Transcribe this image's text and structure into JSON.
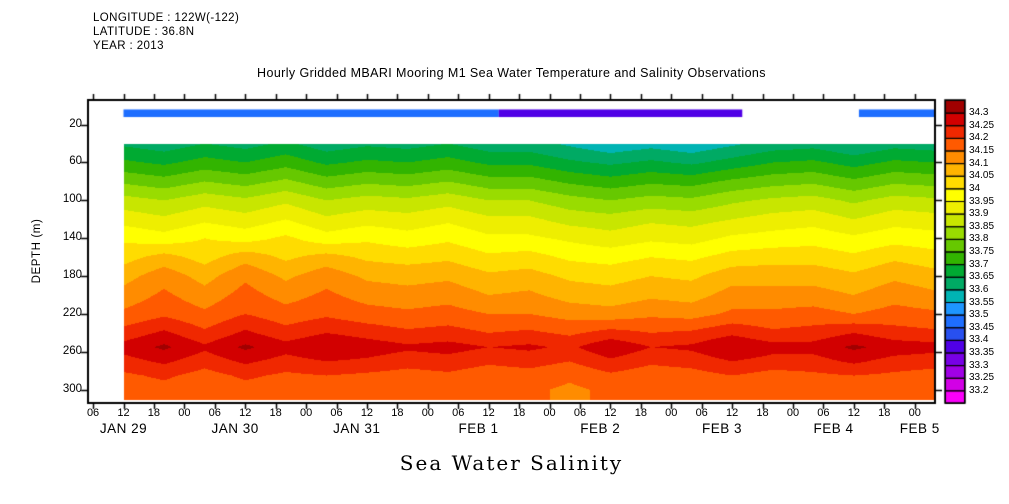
{
  "header": {
    "longitude": "LONGITUDE : 122W(-122)",
    "latitude": "LATITUDE : 36.8N",
    "year": "YEAR : 2013"
  },
  "title": "Hourly Gridded MBARI Mooring M1 Sea Water Temperature and Salinity Observations",
  "footer_label": "Sea Water Salinity",
  "y_axis": {
    "label": "DEPTH (m)",
    "ticks": [
      20,
      60,
      100,
      140,
      180,
      220,
      260,
      300
    ],
    "range": [
      -6,
      314
    ]
  },
  "x_axis": {
    "range_hours": [
      5,
      172
    ],
    "ticks": [
      [
        6,
        "06"
      ],
      [
        12,
        "12"
      ],
      [
        18,
        "18"
      ],
      [
        24,
        "00"
      ],
      [
        30,
        "06"
      ],
      [
        36,
        "12"
      ],
      [
        42,
        "18"
      ],
      [
        48,
        "00"
      ],
      [
        54,
        "06"
      ],
      [
        60,
        "12"
      ],
      [
        66,
        "18"
      ],
      [
        72,
        "00"
      ],
      [
        78,
        "06"
      ],
      [
        84,
        "12"
      ],
      [
        90,
        "18"
      ],
      [
        96,
        "00"
      ],
      [
        102,
        "06"
      ],
      [
        108,
        "12"
      ],
      [
        114,
        "18"
      ],
      [
        120,
        "00"
      ],
      [
        126,
        "06"
      ],
      [
        132,
        "12"
      ],
      [
        138,
        "18"
      ],
      [
        144,
        "00"
      ],
      [
        150,
        "06"
      ],
      [
        156,
        "12"
      ],
      [
        162,
        "18"
      ],
      [
        168,
        "00"
      ]
    ],
    "date_labels": [
      [
        12,
        "JAN 29"
      ],
      [
        34,
        "JAN 30"
      ],
      [
        58,
        "JAN 31"
      ],
      [
        82,
        "FEB 1"
      ],
      [
        106,
        "FEB 2"
      ],
      [
        130,
        "FEB 3"
      ],
      [
        152,
        "FEB 4"
      ],
      [
        169,
        "FEB 5"
      ]
    ]
  },
  "colorbar": {
    "labels_top_to_bottom": [
      "34.3",
      "34.25",
      "34.2",
      "34.15",
      "34.1",
      "34.05",
      "34",
      "33.95",
      "33.9",
      "33.85",
      "33.8",
      "33.75",
      "33.7",
      "33.65",
      "33.6",
      "33.55",
      "33.5",
      "33.45",
      "33.4",
      "33.35",
      "33.3",
      "33.25",
      "33.2"
    ],
    "levels": [
      33.2,
      33.25,
      33.3,
      33.35,
      33.4,
      33.45,
      33.5,
      33.55,
      33.6,
      33.65,
      33.7,
      33.75,
      33.8,
      33.85,
      33.9,
      33.95,
      34.0,
      34.05,
      34.1,
      34.15,
      34.2,
      34.25,
      34.3
    ],
    "palette_low_to_high": [
      "#fa00fa",
      "#d200e6",
      "#a000e6",
      "#7800e6",
      "#5000e6",
      "#2850f0",
      "#1e6eff",
      "#1e96ff",
      "#00b4b4",
      "#00aa64",
      "#00aa32",
      "#32b400",
      "#66c800",
      "#99dc00",
      "#c8e600",
      "#eeee00",
      "#ffff00",
      "#ffdc00",
      "#ffb400",
      "#ff8c00",
      "#ff5a00",
      "#f02800",
      "#d20000",
      "#a00000"
    ]
  },
  "chart_data": {
    "type": "filled_contour",
    "value_label": "Sea Water Salinity",
    "x_unit": "hours from JAN 29 00:00, 2013",
    "x_hours": [
      12,
      20,
      28,
      36,
      44,
      52,
      60,
      68,
      76,
      84,
      92,
      100,
      108,
      116,
      124,
      132,
      140,
      148,
      156,
      164,
      172
    ],
    "depths_m": [
      40,
      60,
      80,
      100,
      120,
      140,
      160,
      180,
      200,
      220,
      240,
      255,
      270,
      285,
      300
    ],
    "salinity": [
      [
        33.64,
        33.62,
        33.65,
        33.63,
        33.66,
        33.62,
        33.64,
        33.63,
        33.65,
        33.62,
        33.62,
        33.59,
        33.56,
        33.58,
        33.56,
        33.59,
        33.62,
        33.63,
        33.6,
        33.63,
        33.62
      ],
      [
        33.71,
        33.69,
        33.72,
        33.7,
        33.73,
        33.69,
        33.71,
        33.7,
        33.72,
        33.69,
        33.69,
        33.66,
        33.64,
        33.66,
        33.64,
        33.67,
        33.7,
        33.71,
        33.68,
        33.71,
        33.7
      ],
      [
        33.79,
        33.77,
        33.8,
        33.78,
        33.81,
        33.77,
        33.79,
        33.78,
        33.8,
        33.77,
        33.77,
        33.74,
        33.72,
        33.74,
        33.73,
        33.76,
        33.78,
        33.79,
        33.76,
        33.79,
        33.78
      ],
      [
        33.87,
        33.85,
        33.88,
        33.86,
        33.89,
        33.85,
        33.87,
        33.86,
        33.88,
        33.85,
        33.85,
        33.82,
        33.8,
        33.82,
        33.81,
        33.84,
        33.86,
        33.87,
        33.84,
        33.87,
        33.86
      ],
      [
        33.93,
        33.91,
        33.94,
        33.92,
        33.95,
        33.91,
        33.93,
        33.92,
        33.94,
        33.91,
        33.91,
        33.88,
        33.87,
        33.89,
        33.88,
        33.9,
        33.92,
        33.93,
        33.9,
        33.93,
        33.92
      ],
      [
        33.99,
        33.97,
        34.0,
        33.98,
        34.01,
        33.97,
        33.99,
        33.97,
        33.99,
        33.96,
        33.96,
        33.94,
        33.92,
        33.94,
        33.93,
        33.96,
        33.97,
        33.98,
        33.96,
        33.98,
        33.97
      ],
      [
        34.03,
        34.07,
        34.03,
        34.08,
        34.04,
        34.07,
        34.04,
        34.03,
        34.04,
        34.01,
        34.02,
        33.99,
        33.98,
        34.0,
        33.99,
        34.02,
        34.03,
        34.03,
        34.01,
        34.04,
        34.02
      ],
      [
        34.08,
        34.13,
        34.08,
        34.14,
        34.09,
        34.13,
        34.09,
        34.08,
        34.09,
        34.06,
        34.07,
        34.04,
        34.03,
        34.05,
        34.04,
        34.08,
        34.08,
        34.08,
        34.06,
        34.09,
        34.07
      ],
      [
        34.12,
        34.16,
        34.12,
        34.17,
        34.13,
        34.16,
        34.13,
        34.12,
        34.13,
        34.1,
        34.11,
        34.08,
        34.07,
        34.09,
        34.08,
        34.12,
        34.12,
        34.12,
        34.1,
        34.13,
        34.11
      ],
      [
        34.16,
        34.19,
        34.16,
        34.2,
        34.17,
        34.19,
        34.17,
        34.16,
        34.17,
        34.15,
        34.15,
        34.13,
        34.12,
        34.14,
        34.13,
        34.16,
        34.16,
        34.17,
        34.15,
        34.17,
        34.16
      ],
      [
        34.22,
        34.26,
        34.21,
        34.26,
        34.22,
        34.25,
        34.23,
        34.21,
        34.22,
        34.2,
        34.21,
        34.19,
        34.22,
        34.2,
        34.21,
        34.24,
        34.21,
        34.22,
        34.25,
        34.22,
        34.21
      ],
      [
        34.27,
        34.31,
        34.26,
        34.31,
        34.27,
        34.3,
        34.28,
        34.26,
        34.27,
        34.25,
        34.26,
        34.24,
        34.29,
        34.25,
        34.26,
        34.3,
        34.27,
        34.27,
        34.31,
        34.28,
        34.27
      ],
      [
        34.23,
        34.26,
        34.22,
        34.26,
        34.23,
        34.25,
        34.24,
        34.22,
        34.23,
        34.21,
        34.22,
        34.2,
        34.24,
        34.21,
        34.22,
        34.25,
        34.23,
        34.23,
        34.26,
        34.23,
        34.22
      ],
      [
        34.19,
        34.21,
        34.18,
        34.21,
        34.19,
        34.2,
        34.19,
        34.18,
        34.19,
        34.17,
        34.18,
        34.16,
        34.19,
        34.17,
        34.18,
        34.2,
        34.18,
        34.19,
        34.2,
        34.19,
        34.18
      ],
      [
        34.17,
        34.18,
        34.16,
        34.18,
        34.17,
        34.18,
        34.17,
        34.16,
        34.17,
        34.15,
        34.16,
        34.14,
        34.16,
        34.15,
        34.16,
        34.17,
        34.16,
        34.16,
        34.17,
        34.16,
        34.16
      ]
    ],
    "surface_band": {
      "depth_range_m": [
        4,
        12
      ],
      "segments": [
        [
          12,
          86,
          33.47
        ],
        [
          86,
          134,
          33.38
        ],
        [
          157,
          172,
          33.46
        ]
      ]
    }
  }
}
